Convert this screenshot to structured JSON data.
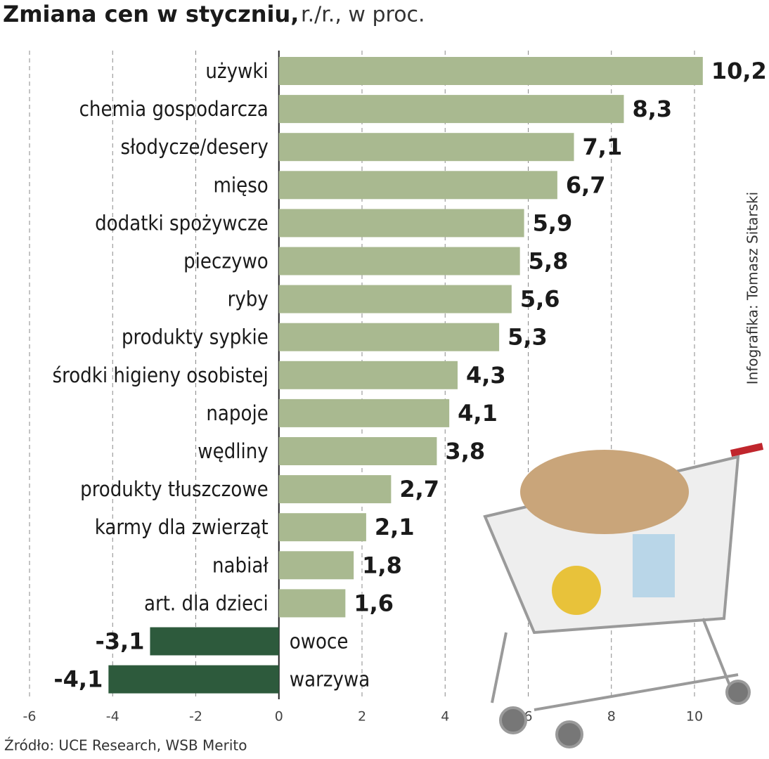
{
  "chart_data": {
    "type": "barh",
    "title": "Zmiana cen w styczniu,",
    "subtitle": "r./r., w proc.",
    "source": "Źródło: UCE Research, WSB Merito",
    "credit": "Infografika: Tomasz Sitarski",
    "categories": [
      "używki",
      "chemia gospodarcza",
      "słodycze/desery",
      "mięso",
      "dodatki spożywcze",
      "pieczywo",
      "ryby",
      "produkty sypkie",
      "środki higieny osobistej",
      "napoje",
      "wędliny",
      "produkty tłuszczowe",
      "karmy dla zwierząt",
      "nabiał",
      "art. dla dzieci",
      "owoce",
      "warzywa"
    ],
    "values": [
      10.2,
      8.3,
      7.1,
      6.7,
      5.9,
      5.8,
      5.6,
      5.3,
      4.3,
      4.1,
      3.8,
      2.7,
      2.1,
      1.8,
      1.6,
      -3.1,
      -4.1
    ],
    "value_labels": [
      "10,2",
      "8,3",
      "7,1",
      "6,7",
      "5,9",
      "5,8",
      "5,6",
      "5,3",
      "4,3",
      "4,1",
      "3,8",
      "2,7",
      "2,1",
      "1,8",
      "1,6",
      "-3,1",
      "-4,1"
    ],
    "color": "#a9b990",
    "negative_color": "#2d5a3c",
    "xlim": [
      -6,
      10
    ],
    "xticks": [
      -6,
      -4,
      -2,
      0,
      2,
      4,
      6,
      8,
      10
    ],
    "grid": true
  }
}
